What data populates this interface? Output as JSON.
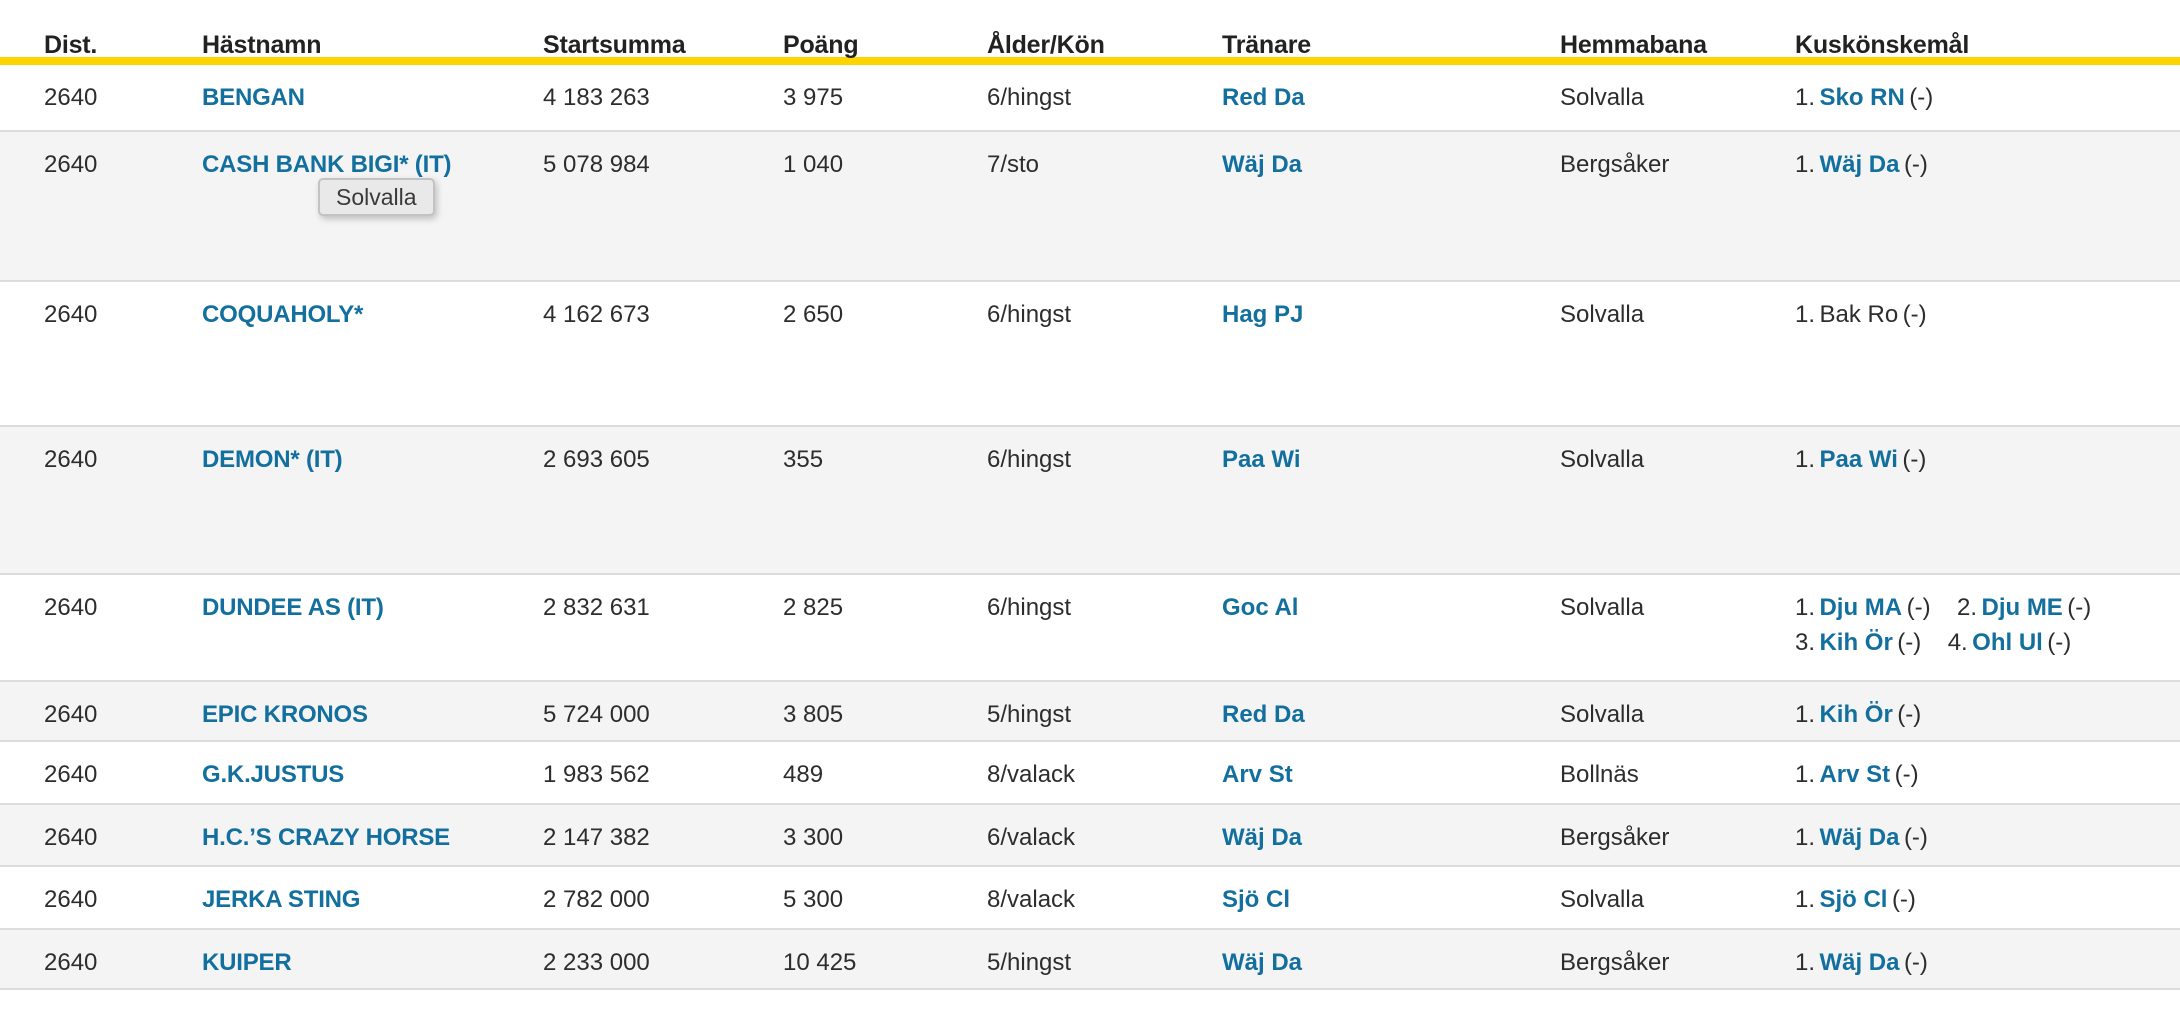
{
  "colors": {
    "accent_yellow": "#fed501",
    "link_blue": "#136f9e",
    "row_alt_gray": "#f4f4f4",
    "separator": "#dcdcdc",
    "text": "#2d2d2d"
  },
  "tooltip": {
    "text": "Solvalla"
  },
  "table": {
    "columns": [
      {
        "key": "dist",
        "label": "Dist."
      },
      {
        "key": "name",
        "label": "Hästnamn"
      },
      {
        "key": "startsumma",
        "label": "Startsumma"
      },
      {
        "key": "poang",
        "label": "Poäng"
      },
      {
        "key": "alder_kon",
        "label": "Ålder/Kön"
      },
      {
        "key": "tranare",
        "label": "Tränare"
      },
      {
        "key": "hemmabana",
        "label": "Hemmabana"
      },
      {
        "key": "kusk",
        "label": "Kuskönskemål"
      }
    ],
    "rows": [
      {
        "dist": "2640",
        "name": "BENGAN",
        "startsumma": "4 183 263",
        "poang": "3 975",
        "alder_kon": "6/hingst",
        "tranare": "Red Da",
        "hemmabana": "Solvalla",
        "kusk": [
          {
            "num": "1.",
            "name": "Sko RN",
            "tail": "(-)",
            "link": true
          }
        ]
      },
      {
        "dist": "2640",
        "name": "CASH BANK BIGI* (IT)",
        "startsumma": "5 078 984",
        "poang": "1 040",
        "alder_kon": "7/sto",
        "tranare": "Wäj Da",
        "hemmabana": "Bergsåker",
        "kusk": [
          {
            "num": "1.",
            "name": "Wäj Da",
            "tail": "(-)",
            "link": true
          }
        ]
      },
      {
        "dist": "2640",
        "name": "COQUAHOLY*",
        "startsumma": "4 162 673",
        "poang": "2 650",
        "alder_kon": "6/hingst",
        "tranare": "Hag PJ",
        "hemmabana": "Solvalla",
        "kusk": [
          {
            "num": "1.",
            "name": "Bak Ro",
            "tail": "(-)",
            "link": false
          }
        ]
      },
      {
        "dist": "2640",
        "name": "DEMON* (IT)",
        "startsumma": "2 693 605",
        "poang": "355",
        "alder_kon": "6/hingst",
        "tranare": "Paa Wi",
        "hemmabana": "Solvalla",
        "kusk": [
          {
            "num": "1.",
            "name": "Paa Wi",
            "tail": "(-)",
            "link": true
          }
        ]
      },
      {
        "dist": "2640",
        "name": "DUNDEE AS (IT)",
        "startsumma": "2 832 631",
        "poang": "2 825",
        "alder_kon": "6/hingst",
        "tranare": "Goc Al",
        "hemmabana": "Solvalla",
        "kusk": [
          {
            "num": "1.",
            "name": "Dju MA",
            "tail": "(-)",
            "link": true
          },
          {
            "num": "2.",
            "name": "Dju ME",
            "tail": "(-)",
            "link": true
          },
          {
            "num": "3.",
            "name": "Kih Ör",
            "tail": "(-)",
            "link": true
          },
          {
            "num": "4.",
            "name": "Ohl Ul",
            "tail": "(-)",
            "link": true
          }
        ]
      },
      {
        "dist": "2640",
        "name": "EPIC KRONOS",
        "startsumma": "5 724 000",
        "poang": "3 805",
        "alder_kon": "5/hingst",
        "tranare": "Red Da",
        "hemmabana": "Solvalla",
        "kusk": [
          {
            "num": "1.",
            "name": "Kih Ör",
            "tail": "(-)",
            "link": true
          }
        ]
      },
      {
        "dist": "2640",
        "name": "G.K.JUSTUS",
        "startsumma": "1 983 562",
        "poang": "489",
        "alder_kon": "8/valack",
        "tranare": "Arv St",
        "hemmabana": "Bollnäs",
        "kusk": [
          {
            "num": "1.",
            "name": "Arv St",
            "tail": "(-)",
            "link": true
          }
        ]
      },
      {
        "dist": "2640",
        "name": "H.C.’S CRAZY HORSE",
        "startsumma": "2 147 382",
        "poang": "3 300",
        "alder_kon": "6/valack",
        "tranare": "Wäj Da",
        "hemmabana": "Bergsåker",
        "kusk": [
          {
            "num": "1.",
            "name": "Wäj Da",
            "tail": "(-)",
            "link": true
          }
        ]
      },
      {
        "dist": "2640",
        "name": "JERKA STING",
        "startsumma": "2 782 000",
        "poang": "5 300",
        "alder_kon": "8/valack",
        "tranare": "Sjö Cl",
        "hemmabana": "Solvalla",
        "kusk": [
          {
            "num": "1.",
            "name": "Sjö Cl",
            "tail": "(-)",
            "link": true
          }
        ]
      },
      {
        "dist": "2640",
        "name": "KUIPER",
        "startsumma": "2 233 000",
        "poang": "10 425",
        "alder_kon": "5/hingst",
        "tranare": "Wäj Da",
        "hemmabana": "Bergsåker",
        "kusk": [
          {
            "num": "1.",
            "name": "Wäj Da",
            "tail": "(-)",
            "link": true
          }
        ]
      }
    ]
  }
}
